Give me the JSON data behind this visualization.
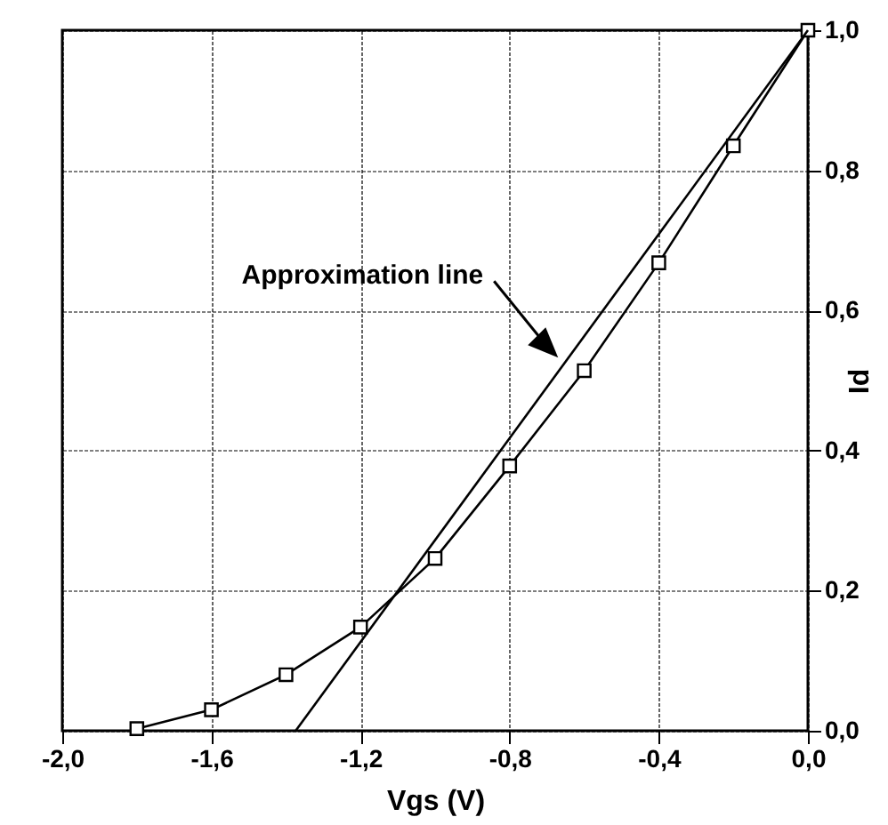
{
  "chart_data": {
    "type": "line",
    "xlabel": "Vgs  (V)",
    "ylabel": "Id",
    "xlim": [
      -2,
      0
    ],
    "ylim": [
      0,
      1
    ],
    "xticks": [
      {
        "value": -2,
        "label": "-2,0"
      },
      {
        "value": -1.6,
        "label": "-1,6"
      },
      {
        "value": -1.2,
        "label": "-1,2"
      },
      {
        "value": -0.8,
        "label": "-0,8"
      },
      {
        "value": -0.4,
        "label": "-0,4"
      },
      {
        "value": 0,
        "label": "0,0"
      }
    ],
    "yticks": [
      {
        "value": 0,
        "label": "0,0"
      },
      {
        "value": 0.2,
        "label": "0,2"
      },
      {
        "value": 0.4,
        "label": "0,4"
      },
      {
        "value": 0.6,
        "label": "0,6"
      },
      {
        "value": 0.8,
        "label": "0,8"
      },
      {
        "value": 1,
        "label": "1,0"
      }
    ],
    "grid": true,
    "marker": "square",
    "line_style": "solid",
    "x": [
      -1.8,
      -1.6,
      -1.4,
      -1.2,
      -1.0,
      -0.8,
      -0.6,
      -0.4,
      -0.2,
      0
    ],
    "series": [
      {
        "color": "#000000",
        "values": [
          0.003,
          0.03,
          0.08,
          0.148,
          0.246,
          0.378,
          0.514,
          0.668,
          0.835,
          1.0
        ]
      },
      {
        "type": "line",
        "marker": "none",
        "color": "#000000",
        "x": [
          -1.374,
          0
        ],
        "values": [
          0,
          1
        ]
      }
    ],
    "annotations": [
      {
        "text": "Approximation line",
        "x": -0.67,
        "y": 0.534
      }
    ]
  }
}
